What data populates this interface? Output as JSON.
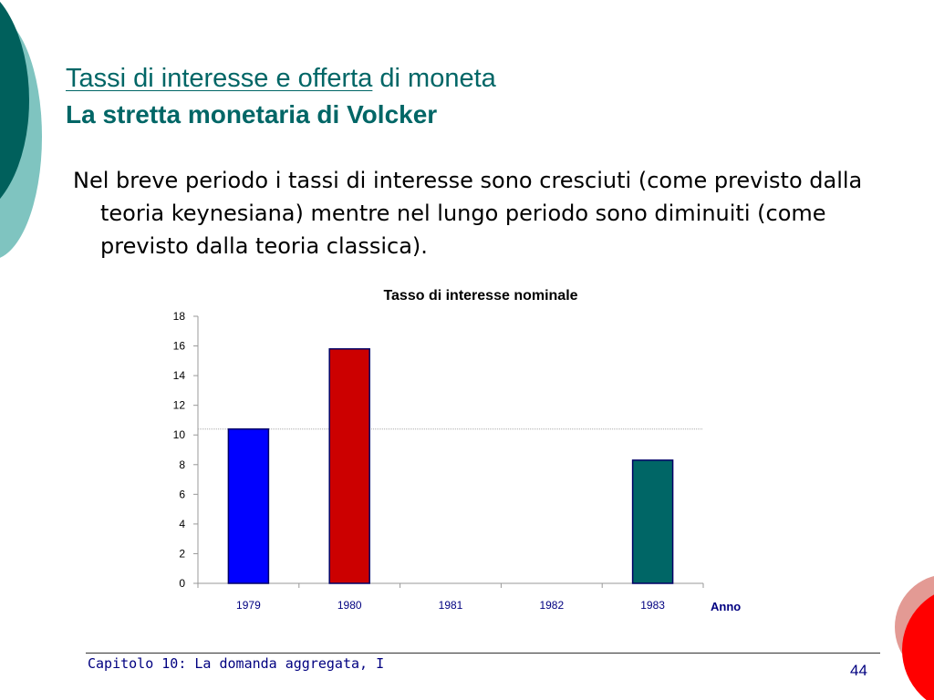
{
  "slide": {
    "title_underlined": "Tassi di interesse e offerta",
    "title_rest": " di moneta",
    "subtitle": "La stretta monetaria di Volcker",
    "body": "Nel breve periodo i tassi di interesse sono cresciuti (come previsto dalla teoria keynesiana) mentre nel lungo periodo sono diminuiti (come previsto dalla teoria classica).",
    "footer": "Capitolo 10: La domanda aggregata, I",
    "page_number": "44",
    "title_color": "#006666"
  },
  "chart_data": {
    "type": "bar",
    "title": "Tasso di interesse nominale",
    "xlabel": "Anno",
    "ylabel": "",
    "categories": [
      "1979",
      "1980",
      "1981",
      "1982",
      "1983"
    ],
    "values": [
      10.4,
      15.8,
      null,
      null,
      8.3
    ],
    "colors": [
      "#0000ff",
      "#cc0000",
      null,
      null,
      "#006666"
    ],
    "ylim": [
      0,
      18
    ],
    "yticks": [
      0,
      2,
      4,
      6,
      8,
      10,
      12,
      14,
      16,
      18
    ],
    "reference_line": 10.4,
    "grid": false,
    "legend": "none"
  }
}
